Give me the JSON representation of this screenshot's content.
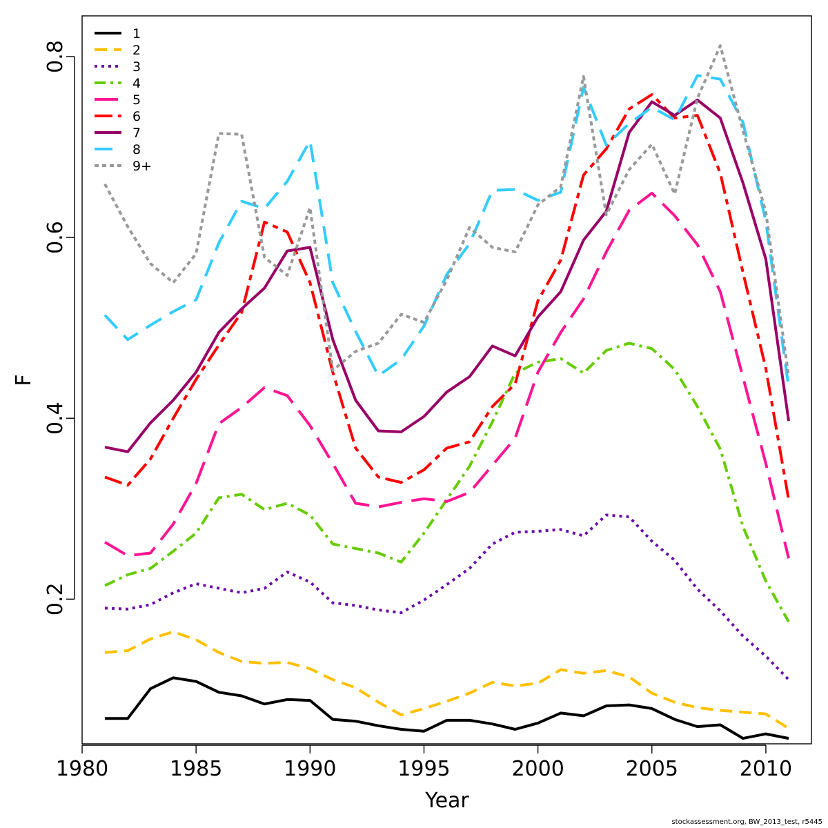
{
  "chart_data": {
    "type": "line",
    "xlabel": "Year",
    "ylabel": "F",
    "xlim": [
      1980,
      2012
    ],
    "ylim": [
      0.04,
      0.845
    ],
    "xticks": [
      "1980",
      "1985",
      "1990",
      "1995",
      "2000",
      "2005",
      "2010"
    ],
    "yticks": [
      "0.2",
      "0.4",
      "0.6",
      "0.8"
    ],
    "legend_position": "top-left",
    "grid": false,
    "x": [
      1981,
      1982,
      1983,
      1984,
      1985,
      1986,
      1987,
      1988,
      1989,
      1990,
      1991,
      1992,
      1993,
      1994,
      1995,
      1996,
      1997,
      1998,
      1999,
      2000,
      2001,
      2002,
      2003,
      2004,
      2005,
      2006,
      2007,
      2008,
      2009,
      2010,
      2011
    ],
    "series": [
      {
        "name": "1",
        "color": "#000000",
        "dash": "",
        "width": 4,
        "values": [
          0.068,
          0.068,
          0.101,
          0.113,
          0.109,
          0.097,
          0.093,
          0.084,
          0.089,
          0.088,
          0.067,
          0.065,
          0.06,
          0.056,
          0.054,
          0.066,
          0.066,
          0.062,
          0.056,
          0.063,
          0.074,
          0.071,
          0.082,
          0.083,
          0.079,
          0.067,
          0.059,
          0.061,
          0.046,
          0.051,
          0.046
        ]
      },
      {
        "name": "2",
        "color": "#ffc000",
        "dash": "18 10",
        "width": 4,
        "values": [
          0.141,
          0.143,
          0.156,
          0.164,
          0.155,
          0.141,
          0.131,
          0.129,
          0.13,
          0.123,
          0.111,
          0.102,
          0.086,
          0.072,
          0.079,
          0.087,
          0.096,
          0.108,
          0.104,
          0.107,
          0.122,
          0.118,
          0.121,
          0.114,
          0.096,
          0.086,
          0.08,
          0.077,
          0.075,
          0.073,
          0.057
        ]
      },
      {
        "name": "3",
        "color": "#6a0dad",
        "dash": "4 6",
        "width": 4,
        "values": [
          0.19,
          0.189,
          0.194,
          0.207,
          0.217,
          0.212,
          0.207,
          0.212,
          0.23,
          0.219,
          0.196,
          0.193,
          0.188,
          0.185,
          0.199,
          0.216,
          0.234,
          0.261,
          0.274,
          0.275,
          0.277,
          0.27,
          0.293,
          0.291,
          0.264,
          0.243,
          0.211,
          0.187,
          0.159,
          0.137,
          0.111
        ]
      },
      {
        "name": "4",
        "color": "#66cc00",
        "dash": "16 7 4 7",
        "width": 4,
        "values": [
          0.215,
          0.227,
          0.234,
          0.253,
          0.273,
          0.312,
          0.316,
          0.299,
          0.306,
          0.293,
          0.261,
          0.256,
          0.251,
          0.241,
          0.273,
          0.31,
          0.347,
          0.396,
          0.45,
          0.462,
          0.466,
          0.45,
          0.475,
          0.483,
          0.477,
          0.454,
          0.413,
          0.366,
          0.28,
          0.22,
          0.175
        ]
      },
      {
        "name": "5",
        "color": "#ff1493",
        "dash": "34 14",
        "width": 4,
        "values": [
          0.263,
          0.248,
          0.251,
          0.283,
          0.328,
          0.394,
          0.412,
          0.434,
          0.425,
          0.392,
          0.35,
          0.306,
          0.302,
          0.307,
          0.311,
          0.308,
          0.318,
          0.348,
          0.378,
          0.451,
          0.495,
          0.532,
          0.584,
          0.63,
          0.649,
          0.624,
          0.592,
          0.54,
          0.445,
          0.35,
          0.245
        ]
      },
      {
        "name": "6",
        "color": "#ff0000",
        "dash": "26 8 8 8",
        "width": 4,
        "values": [
          0.335,
          0.326,
          0.355,
          0.4,
          0.443,
          0.481,
          0.517,
          0.617,
          0.606,
          0.55,
          0.451,
          0.367,
          0.335,
          0.329,
          0.343,
          0.367,
          0.374,
          0.413,
          0.438,
          0.53,
          0.575,
          0.669,
          0.698,
          0.742,
          0.758,
          0.732,
          0.735,
          0.671,
          0.561,
          0.455,
          0.31
        ]
      },
      {
        "name": "7",
        "color": "#990066",
        "dash": "",
        "width": 4,
        "values": [
          0.368,
          0.363,
          0.395,
          0.42,
          0.451,
          0.495,
          0.521,
          0.544,
          0.585,
          0.589,
          0.487,
          0.42,
          0.386,
          0.385,
          0.402,
          0.429,
          0.446,
          0.48,
          0.469,
          0.512,
          0.54,
          0.597,
          0.629,
          0.716,
          0.75,
          0.735,
          0.752,
          0.732,
          0.66,
          0.576,
          0.397
        ]
      },
      {
        "name": "8",
        "color": "#33ccff",
        "dash": "26 14",
        "width": 4,
        "values": [
          0.514,
          0.487,
          0.503,
          0.518,
          0.531,
          0.594,
          0.64,
          0.632,
          0.662,
          0.707,
          0.55,
          0.496,
          0.447,
          0.465,
          0.502,
          0.559,
          0.593,
          0.652,
          0.653,
          0.641,
          0.65,
          0.766,
          0.702,
          0.726,
          0.744,
          0.73,
          0.779,
          0.775,
          0.727,
          0.618,
          0.434
        ]
      },
      {
        "name": "9+",
        "color": "#999999",
        "dash": "6 5",
        "width": 4,
        "values": [
          0.659,
          0.612,
          0.571,
          0.55,
          0.582,
          0.715,
          0.714,
          0.578,
          0.558,
          0.633,
          0.453,
          0.474,
          0.483,
          0.515,
          0.506,
          0.553,
          0.611,
          0.589,
          0.584,
          0.636,
          0.656,
          0.778,
          0.625,
          0.675,
          0.703,
          0.648,
          0.754,
          0.812,
          0.718,
          0.628,
          0.446
        ]
      }
    ]
  },
  "footer": "stockassessment.org, BW_2013_test, r5445"
}
